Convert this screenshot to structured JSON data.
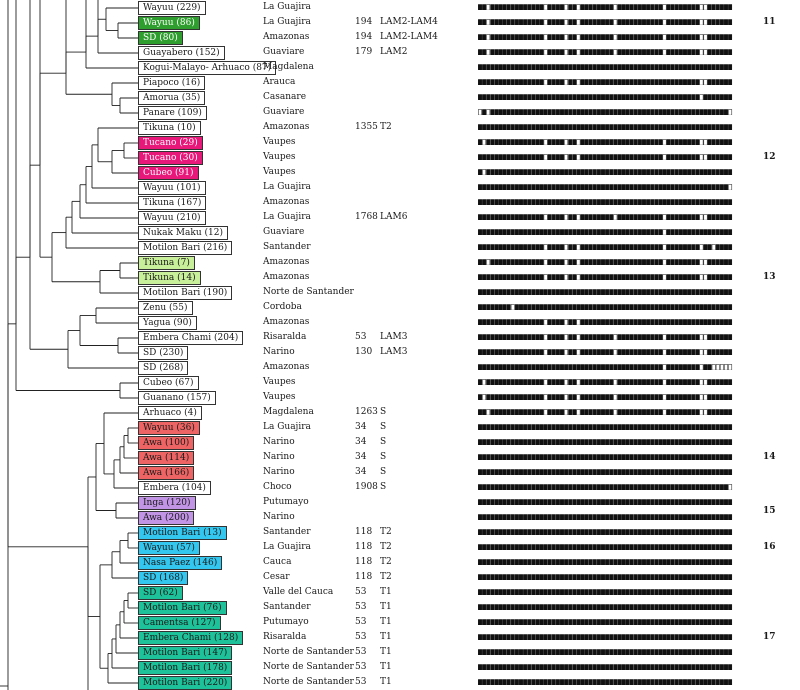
{
  "colors": {
    "green": "#2e9e2e",
    "magenta": "#e8177a",
    "lime": "#c8f09a",
    "red": "#ee6464",
    "violet": "#c294e6",
    "cyan": "#33c6ee",
    "teal": "#1ec29a",
    "white": "#ffffff"
  },
  "rows": [
    {
      "label": "Wayuu (229)",
      "color": "white",
      "dept": "La Guajira",
      "sit": "",
      "family": "",
      "pattern": "11011111111111110111101101111111101111111111101111111100111111"
    },
    {
      "label": "Wayuu (86)",
      "color": "green",
      "dept": "La Guajira",
      "sit": "194",
      "family": "LAM2-LAM4",
      "pattern": "11011111111111110111101101111111101111111111101111111100111111"
    },
    {
      "label": "SD (80)",
      "color": "green",
      "dept": "Amazonas",
      "sit": "194",
      "family": "LAM2-LAM4",
      "pattern": "11011111111111110111101101111111101111111111101111111100111111"
    },
    {
      "label": "Guayabero (152)",
      "color": "white",
      "dept": "Guaviare",
      "sit": "179",
      "family": "LAM2",
      "pattern": "11011111111111110111101101111111101111111111101111111100111111"
    },
    {
      "label": "Kogui-Malayo- Arhuaco (87)",
      "color": "white",
      "dept": "Magdalena",
      "sit": "",
      "family": "",
      "pattern": "11111111111111111111111111111111111111111111111111111111111111"
    },
    {
      "label": "Piapoco (16)",
      "color": "white",
      "dept": "Arauca",
      "sit": "",
      "family": "",
      "pattern": "11111111111111110111101101111111111111111111111111111100111111"
    },
    {
      "label": "Amorua (35)",
      "color": "white",
      "dept": "Casanare",
      "sit": "",
      "family": "",
      "pattern": "11111111111111111111111111111111111111111111111111111101111111"
    },
    {
      "label": "Panare (109)",
      "color": "white",
      "dept": "Guaviare",
      "sit": "",
      "family": "",
      "pattern": "01011111111111111111111111111111111111111111111111111111111110"
    },
    {
      "label": "Tikuna (10)",
      "color": "white",
      "dept": "Amazonas",
      "sit": "1355",
      "family": "T2",
      "pattern": "11111111111111111111111111111111111111111111111111111111111111"
    },
    {
      "label": "Tucano (29)",
      "color": "magenta",
      "dept": "Vaupes",
      "sit": "",
      "family": "",
      "pattern": "10111111111111110111101101111111111111111111101111111100111111"
    },
    {
      "label": "Tucano (30)",
      "color": "magenta",
      "dept": "Vaupes",
      "sit": "",
      "family": "",
      "pattern": "11111111111111110111101101111111111111111111101111111100111111"
    },
    {
      "label": "Cubeo (91)",
      "color": "magenta",
      "dept": "Vaupes",
      "sit": "",
      "family": "",
      "pattern": "10111111111111111111111111111111111111111111111111111111111111"
    },
    {
      "label": "Wayuu (101)",
      "color": "white",
      "dept": "La Guajira",
      "sit": "",
      "family": "",
      "pattern": "11111111111111111111111111111111111111111111111111111111111110"
    },
    {
      "label": "Tikuna (167)",
      "color": "white",
      "dept": "Amazonas",
      "sit": "",
      "family": "",
      "pattern": "11111111111111111111111111111111111111111111111111111111111111"
    },
    {
      "label": "Wayuu (210)",
      "color": "white",
      "dept": "La Guajira",
      "sit": "1768",
      "family": "LAM6",
      "pattern": "11111111111111110111101101111111101111111111101111111100111111"
    },
    {
      "label": "Nukak Maku (12)",
      "color": "white",
      "dept": "Guaviare",
      "sit": "",
      "family": "",
      "pattern": "11111111111111111111111111111111111111111111101111111111111111"
    },
    {
      "label": "Motilon Bari (216)",
      "color": "white",
      "dept": "Santander",
      "sit": "",
      "family": "",
      "pattern": "11111111111111110111101101111111111111111111101111111101101111"
    },
    {
      "label": "Tikuna (7)",
      "color": "lime",
      "dept": "Amazonas",
      "sit": "",
      "family": "",
      "pattern": "11011111111111110111101101111111111111111111101111111100111111"
    },
    {
      "label": "Tikuna (14)",
      "color": "lime",
      "dept": "Amazonas",
      "sit": "",
      "family": "",
      "pattern": "11111111111111110111101101111111111111111111101111111100111111"
    },
    {
      "label": "Motilon Bari (190)",
      "color": "white",
      "dept": "Norte de Santander",
      "sit": "",
      "family": "",
      "pattern": "11111111111111111111111111111111111111111111111111111111111111"
    },
    {
      "label": "Zenu (55)",
      "color": "white",
      "dept": "Cordoba",
      "sit": "",
      "family": "",
      "pattern": "11111111011111111111111111111111111111111111111111111111111111"
    },
    {
      "label": "Yagua (90)",
      "color": "white",
      "dept": "Amazonas",
      "sit": "",
      "family": "",
      "pattern": "11111111111111110111101101111111111111111111111111111111111111"
    },
    {
      "label": "Embera Chami (204)",
      "color": "white",
      "dept": "Risaralda",
      "sit": "53",
      "family": "LAM3",
      "pattern": "11111111111111110111101101111111101111111111101111111100111111"
    },
    {
      "label": "SD (230)",
      "color": "white",
      "dept": "Narino",
      "sit": "130",
      "family": "LAM3",
      "pattern": "11111111111111110111101101111111101111111111101111111100111111"
    },
    {
      "label": "SD (268)",
      "color": "white",
      "dept": "Amazonas",
      "sit": "",
      "family": "",
      "pattern": "11111111111111111111111111111111111111111111101111111101100000"
    },
    {
      "label": "Cubeo (67)",
      "color": "white",
      "dept": "Vaupes",
      "sit": "",
      "family": "",
      "pattern": "10111111111111110111101101111111101111111111101111111100111111"
    },
    {
      "label": "Guanano (157)",
      "color": "white",
      "dept": "Vaupes",
      "sit": "",
      "family": "",
      "pattern": "10111111111111110111101101111111101111111111101111111100111111"
    },
    {
      "label": "Arhuaco (4)",
      "color": "white",
      "dept": "Magdalena",
      "sit": "1263",
      "family": "S",
      "pattern": "11011111111111110111101101111111101111111111101111111100111111"
    },
    {
      "label": "Wayuu (36)",
      "color": "red",
      "dept": "La Guajira",
      "sit": "34",
      "family": "S",
      "pattern": "11111111111111111111111111111111111111111111111111111111111111"
    },
    {
      "label": "Awa (100)",
      "color": "red",
      "dept": "Narino",
      "sit": "34",
      "family": "S",
      "pattern": "11111111111111111111111111111111111111111111111111111111111111"
    },
    {
      "label": "Awa (114)",
      "color": "red",
      "dept": "Narino",
      "sit": "34",
      "family": "S",
      "pattern": "11111111111111111111111111111111111111111111111111111111111111"
    },
    {
      "label": "Awa (166)",
      "color": "red",
      "dept": "Narino",
      "sit": "34",
      "family": "S",
      "pattern": "11111111111111111111111111111111111111111111111111111111111111"
    },
    {
      "label": "Embera (104)",
      "color": "white",
      "dept": "Choco",
      "sit": "1908",
      "family": "S",
      "pattern": "11111111111111111111111111111111111111111111111111111111111110"
    },
    {
      "label": "Inga (120)",
      "color": "violet",
      "dept": "Putumayo",
      "sit": "",
      "family": "",
      "pattern": "11111111111111111111111111111111111111111111111111111111111111"
    },
    {
      "label": "Awa (200)",
      "color": "violet",
      "dept": "Narino",
      "sit": "",
      "family": "",
      "pattern": "11111111111111111111111111111111111111111111111111111111111111"
    },
    {
      "label": "Motilon Bari (13)",
      "color": "cyan",
      "dept": "Santander",
      "sit": "118",
      "family": "T2",
      "pattern": "11111111111111111111111111111111111111111111111111111111111111"
    },
    {
      "label": "Wayuu (57)",
      "color": "cyan",
      "dept": "La Guajira",
      "sit": "118",
      "family": "T2",
      "pattern": "11111111111111111111111111111111111111111111111111111111111111"
    },
    {
      "label": "Nasa Paez (146)",
      "color": "cyan",
      "dept": "Cauca",
      "sit": "118",
      "family": "T2",
      "pattern": "11111111111111111111111111111111111111111111111111111111111111"
    },
    {
      "label": "SD (168)",
      "color": "cyan",
      "dept": "Cesar",
      "sit": "118",
      "family": "T2",
      "pattern": "11111111111111111111111111111111111111111111111111111111111111"
    },
    {
      "label": "SD (62)",
      "color": "teal",
      "dept": "Valle del Cauca",
      "sit": "53",
      "family": "T1",
      "pattern": "11111111111111111111111111111111111111111111111111111111111111"
    },
    {
      "label": "Motilon Bari (76)",
      "color": "teal",
      "dept": "Santander",
      "sit": "53",
      "family": "T1",
      "pattern": "11111111111111111111111111111111111111111111111111111111111111"
    },
    {
      "label": "Camentsa (127)",
      "color": "teal",
      "dept": "Putumayo",
      "sit": "53",
      "family": "T1",
      "pattern": "11111111111111111111111111111111111111111111111111111111111111"
    },
    {
      "label": "Embera Chami (128)",
      "color": "teal",
      "dept": "Risaralda",
      "sit": "53",
      "family": "T1",
      "pattern": "11111111111111111111111111111111111111111111111111111111111111"
    },
    {
      "label": "Motilon Bari (147)",
      "color": "teal",
      "dept": "Norte de Santander",
      "sit": "53",
      "family": "T1",
      "pattern": "11111111111111111111111111111111111111111111111111111111111111"
    },
    {
      "label": "Motilon Bari (178)",
      "color": "teal",
      "dept": "Norte de Santander",
      "sit": "53",
      "family": "T1",
      "pattern": "11111111111111111111111111111111111111111111111111111111111111"
    },
    {
      "label": "Motilon Bari (220)",
      "color": "teal",
      "dept": "Norte de Santander",
      "sit": "53",
      "family": "T1",
      "pattern": "11111111111111111111111111111111111111111111111111111111111111"
    }
  ],
  "groups": [
    {
      "label": "11",
      "row": 1
    },
    {
      "label": "12",
      "row": 10
    },
    {
      "label": "13",
      "row": 18
    },
    {
      "label": "14",
      "row": 30
    },
    {
      "label": "15",
      "row": 33.6
    },
    {
      "label": "16",
      "row": 36
    },
    {
      "label": "17",
      "row": 42
    }
  ]
}
